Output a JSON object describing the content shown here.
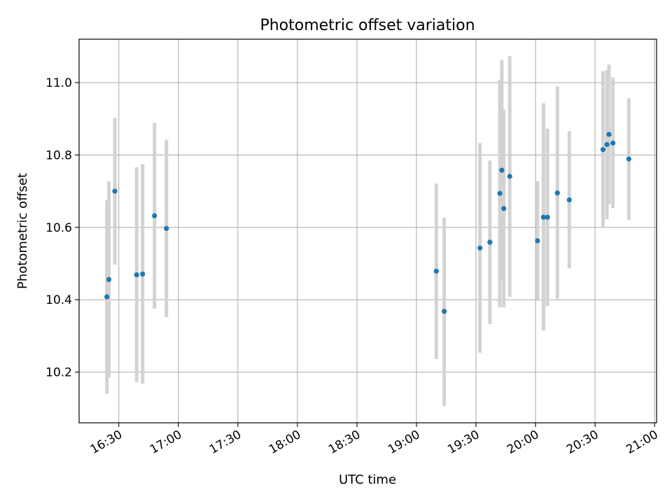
{
  "chart_data": {
    "type": "scatter",
    "title": "Photometric offset variation",
    "xlabel": "UTC time",
    "ylabel": "Photometric offset",
    "x_ticks": [
      "16:30",
      "17:00",
      "17:30",
      "18:00",
      "18:30",
      "19:00",
      "19:30",
      "20:00",
      "20:30",
      "21:00"
    ],
    "y_ticks": [
      "10.2",
      "10.4",
      "10.6",
      "10.8",
      "11.0"
    ],
    "xlim": [
      "16:10",
      "21:01"
    ],
    "ylim": [
      10.06,
      11.12
    ],
    "grid": true,
    "marker_color": "#1f77b4",
    "errorbar_color": "#d3d3d3",
    "points": [
      {
        "t": "16:24",
        "y": 10.408,
        "lo": 10.14,
        "hi": 10.675
      },
      {
        "t": "16:25",
        "y": 10.456,
        "lo": 10.185,
        "hi": 10.727
      },
      {
        "t": "16:28",
        "y": 10.7,
        "lo": 10.497,
        "hi": 10.903
      },
      {
        "t": "16:39",
        "y": 10.469,
        "lo": 10.172,
        "hi": 10.766
      },
      {
        "t": "16:42",
        "y": 10.471,
        "lo": 10.168,
        "hi": 10.775
      },
      {
        "t": "16:48",
        "y": 10.632,
        "lo": 10.375,
        "hi": 10.889
      },
      {
        "t": "16:54",
        "y": 10.597,
        "lo": 10.352,
        "hi": 10.842
      },
      {
        "t": "19:10",
        "y": 10.479,
        "lo": 10.236,
        "hi": 10.721
      },
      {
        "t": "19:14",
        "y": 10.368,
        "lo": 10.106,
        "hi": 10.627
      },
      {
        "t": "19:32",
        "y": 10.543,
        "lo": 10.254,
        "hi": 10.833
      },
      {
        "t": "19:37",
        "y": 10.559,
        "lo": 10.333,
        "hi": 10.785
      },
      {
        "t": "19:42",
        "y": 10.694,
        "lo": 10.379,
        "hi": 11.008
      },
      {
        "t": "19:43",
        "y": 10.758,
        "lo": 10.453,
        "hi": 11.063
      },
      {
        "t": "19:44",
        "y": 10.652,
        "lo": 10.379,
        "hi": 10.925
      },
      {
        "t": "19:47",
        "y": 10.741,
        "lo": 10.408,
        "hi": 11.073
      },
      {
        "t": "20:01",
        "y": 10.563,
        "lo": 10.397,
        "hi": 10.728
      },
      {
        "t": "20:04",
        "y": 10.628,
        "lo": 10.315,
        "hi": 10.943
      },
      {
        "t": "20:06",
        "y": 10.628,
        "lo": 10.383,
        "hi": 10.873
      },
      {
        "t": "20:11",
        "y": 10.695,
        "lo": 10.403,
        "hi": 10.99
      },
      {
        "t": "20:17",
        "y": 10.676,
        "lo": 10.487,
        "hi": 10.866
      },
      {
        "t": "20:34",
        "y": 10.815,
        "lo": 10.598,
        "hi": 11.032
      },
      {
        "t": "20:36",
        "y": 10.829,
        "lo": 10.623,
        "hi": 11.035
      },
      {
        "t": "20:37",
        "y": 10.857,
        "lo": 10.664,
        "hi": 11.05
      },
      {
        "t": "20:39",
        "y": 10.833,
        "lo": 10.653,
        "hi": 11.014
      },
      {
        "t": "20:47",
        "y": 10.789,
        "lo": 10.621,
        "hi": 10.957
      }
    ]
  }
}
